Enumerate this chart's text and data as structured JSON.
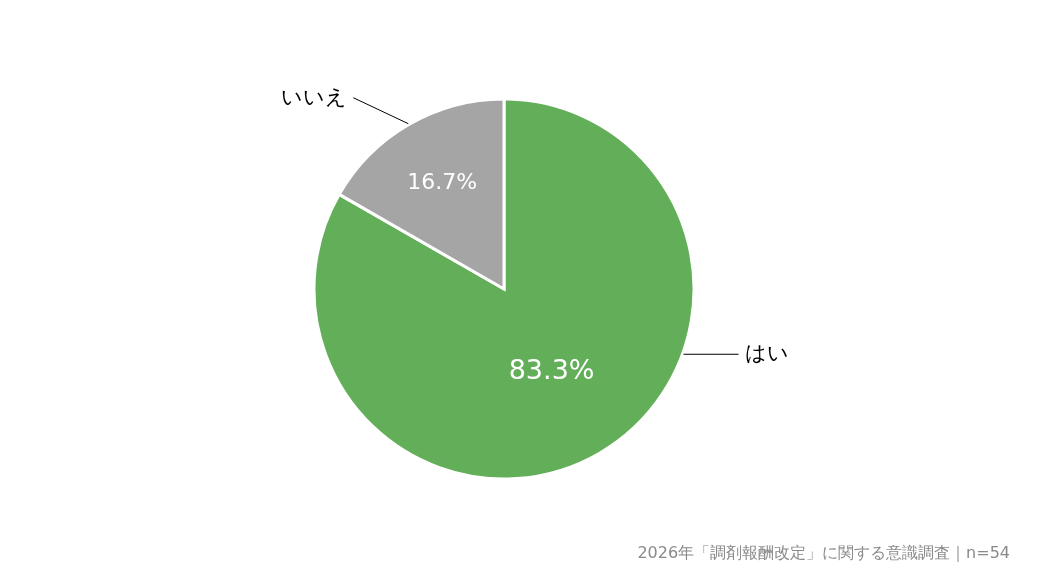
{
  "chart_data": {
    "type": "pie",
    "categories": [
      "はい",
      "いいえ"
    ],
    "values": [
      83.3,
      16.7
    ],
    "colors": [
      "#63ae58",
      "#a5a5a5"
    ],
    "value_labels": [
      "83.3%",
      "16.7%"
    ],
    "annotations": [
      "2026年「調剤報酬改定」に関する意識調査｜n=54"
    ]
  }
}
